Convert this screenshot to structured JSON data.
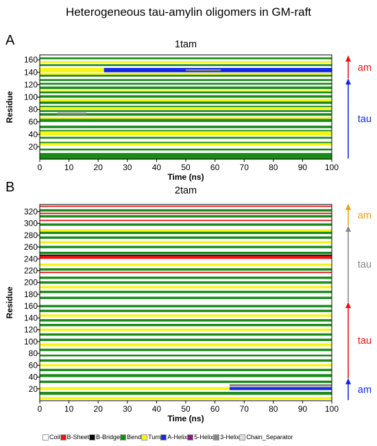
{
  "figure_title": "Heterogeneous tau-amylin oligomers in GM-raft",
  "panels": [
    {
      "letter": "A",
      "title": "1tam"
    },
    {
      "letter": "B",
      "title": "2tam"
    }
  ],
  "structure_colors": {
    "Coil": "#ffffff",
    "B-Sheet": "#ee1111",
    "B-Bridge": "#000000",
    "Bend": "#1a8a1a",
    "Turn": "#f5f516",
    "A-Helix": "#1428e6",
    "5-Helix": "#8a1a8a",
    "3-Helix": "#888888",
    "Chain_Separator": "#dddddd"
  },
  "legend": [
    {
      "label": "Coil",
      "color": "#ffffff"
    },
    {
      "label": "B-Sheet",
      "color": "#ee1111"
    },
    {
      "label": "B-Bridge",
      "color": "#000000"
    },
    {
      "label": "Bend",
      "color": "#1a8a1a"
    },
    {
      "label": "Turn",
      "color": "#f5f516"
    },
    {
      "label": "A-Helix",
      "color": "#1428e6"
    },
    {
      "label": "5-Helix",
      "color": "#8a1a8a"
    },
    {
      "label": "3-Helix",
      "color": "#888888"
    },
    {
      "label": "Chain_Separator",
      "color": "#dddddd"
    }
  ],
  "chart_data": [
    {
      "type": "heatmap",
      "title": "1tam",
      "xlabel": "Time (ns)",
      "ylabel": "Residue",
      "xlim": [
        0,
        100
      ],
      "ylim": [
        0,
        168
      ],
      "xticks": [
        0,
        10,
        20,
        30,
        40,
        50,
        60,
        70,
        80,
        90,
        100
      ],
      "yticks": [
        20,
        40,
        60,
        80,
        100,
        120,
        140,
        160
      ],
      "segments": [
        {
          "label": "tau",
          "range": [
            1,
            129
          ],
          "color": "#1428e6"
        },
        {
          "label": "am",
          "range": [
            130,
            166
          ],
          "color": "#ee1111"
        }
      ],
      "bands": [
        {
          "y": [
            0,
            10
          ],
          "t": [
            0,
            100
          ],
          "s": "Bend"
        },
        {
          "y": [
            14,
            17
          ],
          "t": [
            0,
            100
          ],
          "s": "Bend"
        },
        {
          "y": [
            22,
            26
          ],
          "t": [
            0,
            100
          ],
          "s": "Turn"
        },
        {
          "y": [
            26,
            28
          ],
          "t": [
            0,
            100
          ],
          "s": "Bend"
        },
        {
          "y": [
            33,
            36
          ],
          "t": [
            0,
            100
          ],
          "s": "Bend"
        },
        {
          "y": [
            38,
            45
          ],
          "t": [
            0,
            100
          ],
          "s": "Turn"
        },
        {
          "y": [
            45,
            47
          ],
          "t": [
            0,
            100
          ],
          "s": "Bend"
        },
        {
          "y": [
            50,
            54
          ],
          "t": [
            0,
            100
          ],
          "s": "Bend"
        },
        {
          "y": [
            60,
            65
          ],
          "t": [
            0,
            100
          ],
          "s": "Bend"
        },
        {
          "y": [
            65,
            68
          ],
          "t": [
            0,
            100
          ],
          "s": "Turn"
        },
        {
          "y": [
            70,
            74
          ],
          "t": [
            0,
            100
          ],
          "s": "Bend"
        },
        {
          "y": [
            76,
            79
          ],
          "t": [
            0,
            100
          ],
          "s": "Bend"
        },
        {
          "y": [
            80,
            84
          ],
          "t": [
            0,
            100
          ],
          "s": "Turn"
        },
        {
          "y": [
            84,
            86
          ],
          "t": [
            0,
            100
          ],
          "s": "Bend"
        },
        {
          "y": [
            89,
            93
          ],
          "t": [
            0,
            100
          ],
          "s": "Bend"
        },
        {
          "y": [
            93,
            97
          ],
          "t": [
            0,
            100
          ],
          "s": "Turn"
        },
        {
          "y": [
            99,
            103
          ],
          "t": [
            0,
            100
          ],
          "s": "Bend"
        },
        {
          "y": [
            106,
            109
          ],
          "t": [
            0,
            100
          ],
          "s": "Bend"
        },
        {
          "y": [
            109,
            111
          ],
          "t": [
            0,
            100
          ],
          "s": "Turn"
        },
        {
          "y": [
            113,
            117
          ],
          "t": [
            0,
            100
          ],
          "s": "Bend"
        },
        {
          "y": [
            120,
            123
          ],
          "t": [
            0,
            100
          ],
          "s": "Bend"
        },
        {
          "y": [
            126,
            129
          ],
          "t": [
            0,
            100
          ],
          "s": "Bend"
        },
        {
          "y": [
            133,
            136
          ],
          "t": [
            0,
            100
          ],
          "s": "Bend"
        },
        {
          "y": [
            136,
            139
          ],
          "t": [
            0,
            100
          ],
          "s": "Turn"
        },
        {
          "y": [
            140,
            147
          ],
          "t": [
            0,
            22
          ],
          "s": "Turn"
        },
        {
          "y": [
            140,
            147
          ],
          "t": [
            22,
            100
          ],
          "s": "A-Helix"
        },
        {
          "y": [
            142,
            145
          ],
          "t": [
            50,
            62
          ],
          "s": "3-Helix"
        },
        {
          "y": [
            150,
            153
          ],
          "t": [
            0,
            100
          ],
          "s": "Bend"
        },
        {
          "y": [
            155,
            158
          ],
          "t": [
            0,
            100
          ],
          "s": "Turn"
        },
        {
          "y": [
            161,
            164
          ],
          "t": [
            0,
            100
          ],
          "s": "Bend"
        },
        {
          "y": [
            72,
            75
          ],
          "t": [
            6,
            16
          ],
          "s": "3-Helix"
        }
      ]
    },
    {
      "type": "heatmap",
      "title": "2tam",
      "xlabel": "Time (ns)",
      "ylabel": "Residue",
      "xlim": [
        0,
        100
      ],
      "ylim": [
        0,
        332
      ],
      "xticks": [
        0,
        10,
        20,
        30,
        40,
        50,
        60,
        70,
        80,
        90,
        100
      ],
      "yticks": [
        20,
        40,
        60,
        80,
        100,
        120,
        140,
        160,
        180,
        200,
        220,
        240,
        260,
        280,
        300,
        320
      ],
      "segments": [
        {
          "label": "am",
          "range": [
            1,
            37
          ],
          "color": "#1428e6"
        },
        {
          "label": "tau",
          "range": [
            38,
            166
          ],
          "color": "#ee1111"
        },
        {
          "label": "tau",
          "range": [
            167,
            295
          ],
          "color": "#888888"
        },
        {
          "label": "am",
          "range": [
            296,
            332
          ],
          "color": "#f39c12"
        }
      ],
      "bands": [
        {
          "y": [
            2,
            6
          ],
          "t": [
            0,
            100
          ],
          "s": "Turn"
        },
        {
          "y": [
            10,
            15
          ],
          "t": [
            0,
            100
          ],
          "s": "Bend"
        },
        {
          "y": [
            18,
            23
          ],
          "t": [
            0,
            65
          ],
          "s": "Turn"
        },
        {
          "y": [
            18,
            23
          ],
          "t": [
            65,
            100
          ],
          "s": "A-Helix"
        },
        {
          "y": [
            24,
            28
          ],
          "t": [
            65,
            100
          ],
          "s": "3-Helix"
        },
        {
          "y": [
            30,
            34
          ],
          "t": [
            0,
            100
          ],
          "s": "Bend"
        },
        {
          "y": [
            40,
            45
          ],
          "t": [
            0,
            100
          ],
          "s": "Bend"
        },
        {
          "y": [
            50,
            54
          ],
          "t": [
            0,
            100
          ],
          "s": "Bend"
        },
        {
          "y": [
            58,
            62
          ],
          "t": [
            0,
            100
          ],
          "s": "Turn"
        },
        {
          "y": [
            66,
            70
          ],
          "t": [
            0,
            100
          ],
          "s": "Bend"
        },
        {
          "y": [
            75,
            78
          ],
          "t": [
            0,
            100
          ],
          "s": "Bend"
        },
        {
          "y": [
            84,
            88
          ],
          "t": [
            0,
            100
          ],
          "s": "Bend"
        },
        {
          "y": [
            92,
            97
          ],
          "t": [
            0,
            100
          ],
          "s": "Turn"
        },
        {
          "y": [
            101,
            105
          ],
          "t": [
            0,
            100
          ],
          "s": "Bend"
        },
        {
          "y": [
            110,
            114
          ],
          "t": [
            0,
            100
          ],
          "s": "Bend"
        },
        {
          "y": [
            118,
            122
          ],
          "t": [
            0,
            100
          ],
          "s": "Turn"
        },
        {
          "y": [
            126,
            130
          ],
          "t": [
            0,
            100
          ],
          "s": "Bend"
        },
        {
          "y": [
            134,
            138
          ],
          "t": [
            0,
            100
          ],
          "s": "Bend"
        },
        {
          "y": [
            142,
            146
          ],
          "t": [
            0,
            100
          ],
          "s": "Turn"
        },
        {
          "y": [
            150,
            154
          ],
          "t": [
            0,
            100
          ],
          "s": "Bend"
        },
        {
          "y": [
            158,
            162
          ],
          "t": [
            0,
            100
          ],
          "s": "Bend"
        },
        {
          "y": [
            172,
            176
          ],
          "t": [
            0,
            100
          ],
          "s": "Bend"
        },
        {
          "y": [
            182,
            186
          ],
          "t": [
            0,
            100
          ],
          "s": "Bend"
        },
        {
          "y": [
            190,
            194
          ],
          "t": [
            0,
            100
          ],
          "s": "Turn"
        },
        {
          "y": [
            198,
            202
          ],
          "t": [
            0,
            100
          ],
          "s": "Bend"
        },
        {
          "y": [
            206,
            210
          ],
          "t": [
            0,
            100
          ],
          "s": "Bend"
        },
        {
          "y": [
            216,
            218
          ],
          "t": [
            0,
            100
          ],
          "s": "B-Sheet"
        },
        {
          "y": [
            220,
            224
          ],
          "t": [
            0,
            100
          ],
          "s": "Bend"
        },
        {
          "y": [
            228,
            232
          ],
          "t": [
            0,
            100
          ],
          "s": "Turn"
        },
        {
          "y": [
            240,
            245
          ],
          "t": [
            0,
            100
          ],
          "s": "B-Sheet"
        },
        {
          "y": [
            245,
            247
          ],
          "t": [
            0,
            100
          ],
          "s": "B-Bridge"
        },
        {
          "y": [
            248,
            252
          ],
          "t": [
            0,
            100
          ],
          "s": "Bend"
        },
        {
          "y": [
            258,
            262
          ],
          "t": [
            0,
            100
          ],
          "s": "Bend"
        },
        {
          "y": [
            266,
            270
          ],
          "t": [
            0,
            100
          ],
          "s": "Turn"
        },
        {
          "y": [
            274,
            278
          ],
          "t": [
            0,
            100
          ],
          "s": "Bend"
        },
        {
          "y": [
            282,
            286
          ],
          "t": [
            0,
            100
          ],
          "s": "Bend"
        },
        {
          "y": [
            286,
            290
          ],
          "t": [
            0,
            100
          ],
          "s": "Turn"
        },
        {
          "y": [
            296,
            300
          ],
          "t": [
            0,
            100
          ],
          "s": "Bend"
        },
        {
          "y": [
            304,
            306
          ],
          "t": [
            0,
            100
          ],
          "s": "B-Sheet"
        },
        {
          "y": [
            310,
            314
          ],
          "t": [
            0,
            100
          ],
          "s": "Bend"
        },
        {
          "y": [
            316,
            318
          ],
          "t": [
            0,
            100
          ],
          "s": "B-Sheet"
        },
        {
          "y": [
            320,
            324
          ],
          "t": [
            0,
            100
          ],
          "s": "Bend"
        },
        {
          "y": [
            328,
            330
          ],
          "t": [
            0,
            100
          ],
          "s": "B-Sheet"
        }
      ]
    }
  ]
}
